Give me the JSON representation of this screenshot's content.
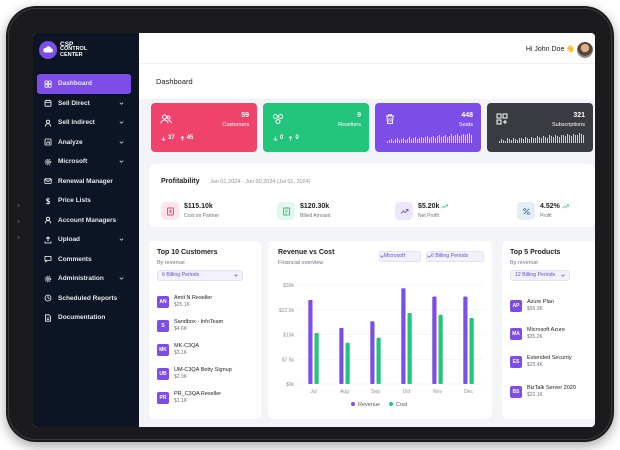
{
  "app": {
    "logo_line1": "CSP",
    "logo_line2": "CONTROL",
    "logo_line3": "CENTER"
  },
  "sidebar": {
    "items": [
      {
        "label": "Dashboard",
        "icon": "grid-icon",
        "active": true,
        "chevron": false
      },
      {
        "label": "Sell Direct",
        "icon": "calendar-icon",
        "chevron": true
      },
      {
        "label": "Sell Indirect",
        "icon": "user-icon",
        "chevron": true
      },
      {
        "label": "Analyze",
        "icon": "chart-icon",
        "chevron": true
      },
      {
        "label": "Microsoft",
        "icon": "gear-icon",
        "chevron": true
      },
      {
        "label": "Renewal Manager",
        "icon": "envelope-icon",
        "chevron": false
      },
      {
        "label": "Price Lists",
        "icon": "dollar-icon",
        "chevron": false
      },
      {
        "label": "Account Managers",
        "icon": "user-icon",
        "chevron": false
      },
      {
        "label": "Upload",
        "icon": "upload-icon",
        "chevron": true
      },
      {
        "label": "Comments",
        "icon": "comment-icon",
        "chevron": false
      },
      {
        "label": "Administration",
        "icon": "gear-icon",
        "chevron": true
      },
      {
        "label": "Scheduled Reports",
        "icon": "clock-icon",
        "chevron": false
      },
      {
        "label": "Documentation",
        "icon": "document-icon",
        "chevron": false
      }
    ]
  },
  "header": {
    "greeting": "Hi John Doe 👋"
  },
  "page": {
    "title": "Dashboard"
  },
  "stats": {
    "customers": {
      "value": "59",
      "label": "Customers",
      "down": "37",
      "up": "45",
      "color": "#f0436c"
    },
    "resellers": {
      "value": "9",
      "label": "Resellers",
      "down": "0",
      "up": "0",
      "color": "#23c47c"
    },
    "seats": {
      "value": "448",
      "label": "Seats",
      "color": "#7c4de8"
    },
    "subscriptions": {
      "value": "321",
      "label": "Subscriptions",
      "color": "#3a3b40"
    }
  },
  "profitability": {
    "title": "Profitability",
    "range": "Jun 01,2024 - Jun 30,2024 (Jul 01, 2024)",
    "kpis": [
      {
        "value": "$115.10k",
        "label": "Cost on Partner",
        "icon": "invoice-icon",
        "color": "#f0436c"
      },
      {
        "value": "$120.30k",
        "label": "Billed Amount",
        "icon": "bill-icon",
        "color": "#23c47c"
      },
      {
        "value": "$5.20k",
        "label": "Net Profit",
        "icon": "trend-icon",
        "color": "#7c4de8"
      },
      {
        "value": "4.52%",
        "label": "Profit",
        "icon": "percent-icon",
        "color": "#3a7bd5"
      }
    ]
  },
  "top_customers": {
    "title": "Top 10 Customers",
    "subtitle": "By revenue",
    "filter": "6 Billing Periods",
    "items": [
      {
        "badge": "AN",
        "name": "Amit N Reseller",
        "value": "$25.1K"
      },
      {
        "badge": "S",
        "name": "Sandbox - InfoTeam",
        "value": "$4.6K"
      },
      {
        "badge": "MK",
        "name": "MK-C3QA",
        "value": "$3.1K"
      },
      {
        "badge": "UB",
        "name": "UM-C3QA Betty Signup",
        "value": "$2.0K"
      },
      {
        "badge": "PR",
        "name": "PR_C3QA Reseller",
        "value": "$1.1K"
      }
    ]
  },
  "revenue_chart": {
    "title": "Revenue vs Cost",
    "subtitle": "Financial overview",
    "filter_provider": "Microsoft",
    "filter_period": "6 Billing Periods"
  },
  "chart_data": {
    "type": "bar",
    "categories": [
      "Jul",
      "Aug",
      "Sep",
      "Oct",
      "Nov",
      "Dec"
    ],
    "yticks": [
      "$0k",
      "$7.5k",
      "$15k",
      "$22.5k",
      "$30k"
    ],
    "ylim": [
      0,
      30
    ],
    "series": [
      {
        "name": "Revenue",
        "color": "#7c4de8",
        "values": [
          25.5,
          17,
          19,
          29,
          26.5,
          26.5
        ]
      },
      {
        "name": "Cost",
        "color": "#23c47c",
        "values": [
          15.5,
          12.5,
          14,
          21.5,
          21,
          20
        ]
      }
    ],
    "legend": "bottom"
  },
  "top_products": {
    "title": "Top 5 Products",
    "subtitle": "By revenue",
    "filter": "12 Billing Periods",
    "items": [
      {
        "badge": "AP",
        "name": "Azure Plan",
        "value": "$55.3K"
      },
      {
        "badge": "MA",
        "name": "Microsoft Azure",
        "value": "$35.2K"
      },
      {
        "badge": "ES",
        "name": "Extended Security",
        "value": "$25.4K"
      },
      {
        "badge": "BS",
        "name": "BizTalk Server 2020",
        "value": "$22.1K"
      }
    ]
  }
}
